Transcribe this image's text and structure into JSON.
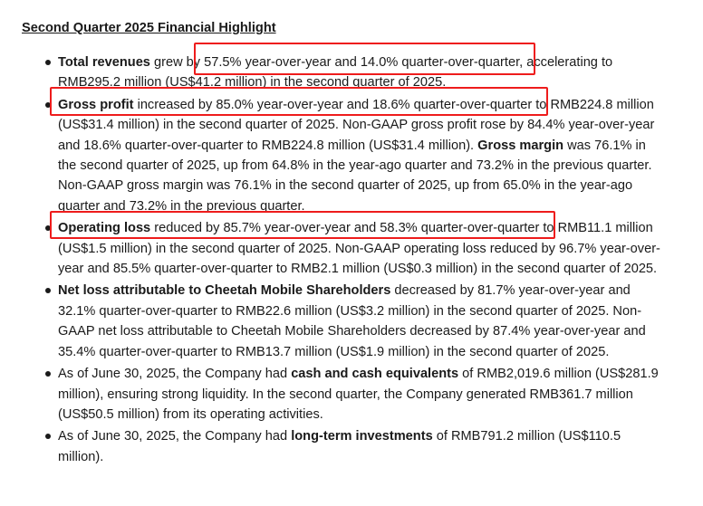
{
  "top_fragment": "...  ...   ...  ...",
  "section_title": "Second Quarter 2025 Financial Highlight",
  "items": [
    {
      "lead": "",
      "bold": "Total revenues",
      "text": " grew by 57.5% year-over-year and 14.0% quarter-over-quarter, accelerating to RMB295.2 million (US$41.2 million) in the second quarter of 2025."
    },
    {
      "lead": "",
      "bold": "Gross profit",
      "text": " increased by 85.0% year-over-year and 18.6% quarter-over-quarter to RMB224.8 million (US$31.4 million) in the second quarter of 2025. Non-GAAP gross profit rose by 84.4% year-over-year and 18.6% quarter-over-quarter to RMB224.8 million (US$31.4 million). ",
      "bold2": "Gross margin",
      "text2": " was 76.1% in the second quarter of 2025, up from 64.8% in the year-ago quarter and 73.2% in the previous quarter. Non-GAAP gross margin was 76.1% in the second quarter of 2025, up from 65.0% in the year-ago quarter and 73.2% in the previous quarter."
    },
    {
      "lead": "",
      "bold": "Operating loss",
      "text": " reduced by 85.7% year-over-year and 58.3% quarter-over-quarter to RMB11.1 million (US$1.5 million) in the second quarter of 2025. Non-GAAP operating loss reduced by 96.7% year-over-year and 85.5% quarter-over-quarter to RMB2.1 million (US$0.3 million) in the second quarter of 2025."
    },
    {
      "lead": "",
      "bold": "Net loss attributable to Cheetah Mobile Shareholders",
      "text": " decreased by 81.7% year-over-year and 32.1% quarter-over-quarter to RMB22.6 million (US$3.2 million) in the second quarter of 2025. Non-GAAP net loss attributable to Cheetah Mobile Shareholders decreased by 87.4% year-over-year and 35.4% quarter-over-quarter to RMB13.7 million (US$1.9 million) in the second quarter of 2025."
    },
    {
      "lead": "As of June 30, 2025, the Company had ",
      "bold": "cash and cash equivalents",
      "text": " of RMB2,019.6 million (US$281.9 million), ensuring strong liquidity. In the second quarter, the Company generated RMB361.7 million (US$50.5 million) from its operating activities."
    },
    {
      "lead": "As of June 30, 2025, the Company had ",
      "bold": "long-term investments",
      "text": " of RMB791.2 million (US$110.5 million)."
    }
  ],
  "annotation_color": "#ee1c1c"
}
